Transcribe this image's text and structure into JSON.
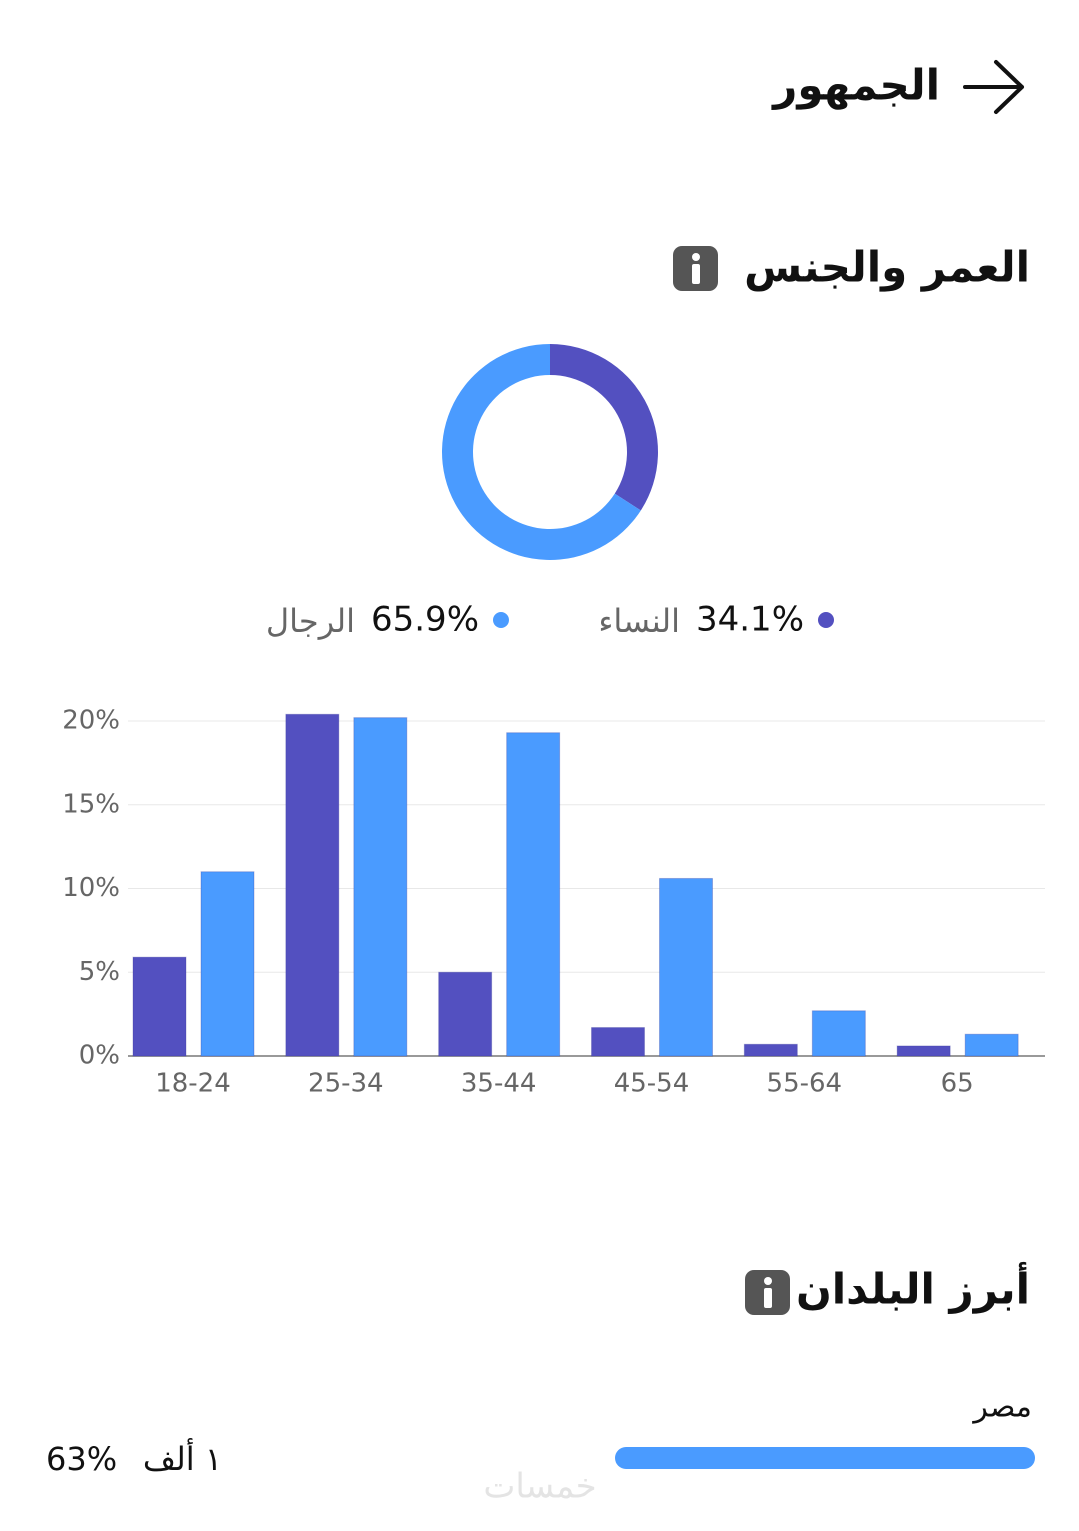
{
  "header": {
    "title": "الجمهور"
  },
  "sections": [
    {
      "title": "العمر والجنس"
    },
    {
      "title": "أبرز البلدان"
    }
  ],
  "chart_data": [
    {
      "type": "pie",
      "categories": [
        "النساء",
        "الرجال"
      ],
      "values": [
        34.1,
        65.9
      ],
      "value_labels": [
        "34.1%",
        "65.9%"
      ],
      "colors": [
        "#5350c0",
        "#4a9bff"
      ]
    },
    {
      "type": "bar",
      "categories": [
        "18-24",
        "25-34",
        "35-44",
        "45-54",
        "55-64",
        "65"
      ],
      "series": [
        {
          "color": "#5350c0",
          "values": [
            5.9,
            20.4,
            5.0,
            1.7,
            0.7,
            0.6
          ]
        },
        {
          "color": "#4a9bff",
          "values": [
            11.0,
            20.2,
            19.3,
            10.6,
            2.7,
            1.3
          ]
        }
      ],
      "ylim": [
        0,
        20
      ],
      "yticks": [
        {
          "value": 0,
          "label": "0%"
        },
        {
          "value": 5,
          "label": "5%"
        },
        {
          "value": 10,
          "label": "10%"
        },
        {
          "value": 15,
          "label": "15%"
        },
        {
          "value": 20,
          "label": "20%"
        }
      ],
      "grid": true
    }
  ],
  "countries": [
    {
      "name": "مصر",
      "count": "١ ألف",
      "percent": 63,
      "percent_label": "63%"
    }
  ],
  "watermark": "خمسات"
}
